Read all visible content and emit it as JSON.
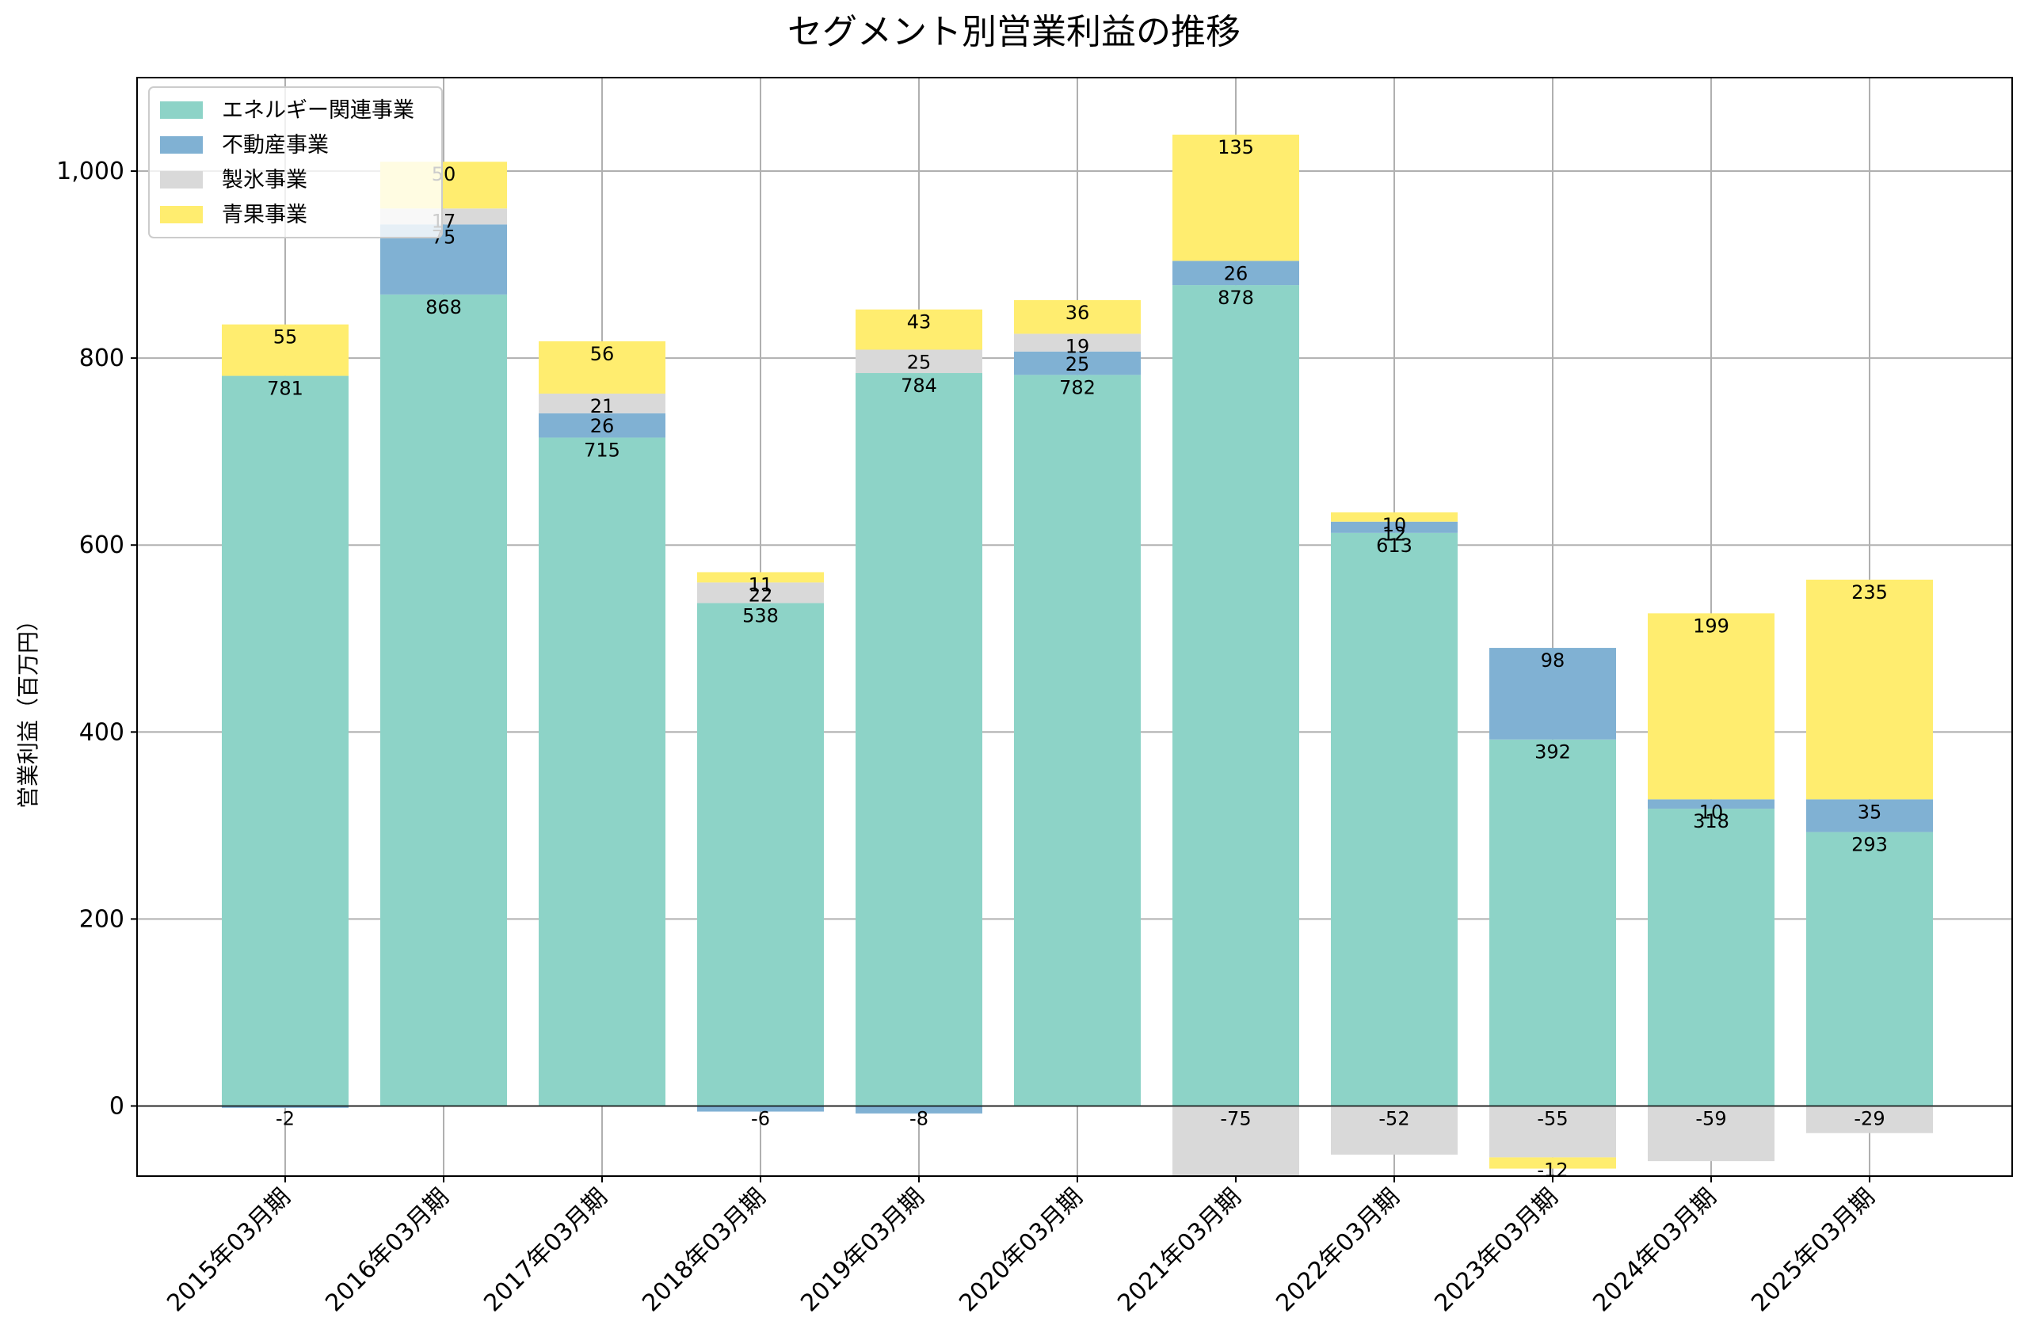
{
  "chart_data": {
    "type": "bar",
    "stacked": true,
    "title": "セグメント別営業利益の推移",
    "xlabel": "",
    "ylabel": "営業利益（百万円）",
    "ylim": [
      -75,
      1100
    ],
    "yticks": [
      0,
      200,
      400,
      600,
      800,
      1000
    ],
    "ytick_labels": [
      "0",
      "200",
      "400",
      "600",
      "800",
      "1,000"
    ],
    "grid": true,
    "legend_position": "top-left",
    "categories": [
      "2015年03月期",
      "2016年03月期",
      "2017年03月期",
      "2018年03月期",
      "2019年03月期",
      "2020年03月期",
      "2021年03月期",
      "2022年03月期",
      "2023年03月期",
      "2024年03月期",
      "2025年03月期"
    ],
    "series": [
      {
        "name": "エネルギー関連事業",
        "color": "#8dd3c7",
        "values": [
          781,
          868,
          715,
          538,
          784,
          782,
          878,
          613,
          392,
          318,
          293
        ]
      },
      {
        "name": "不動産事業",
        "color": "#80b1d3",
        "values": [
          -2,
          75,
          26,
          -6,
          -8,
          25,
          26,
          12,
          98,
          10,
          35
        ]
      },
      {
        "name": "製氷事業",
        "color": "#d9d9d9",
        "values": [
          0,
          17,
          21,
          22,
          25,
          19,
          -75,
          -52,
          -55,
          -59,
          -29
        ]
      },
      {
        "name": "青果事業",
        "color": "#ffed6f",
        "values": [
          55,
          50,
          56,
          11,
          43,
          36,
          135,
          10,
          -12,
          199,
          235
        ]
      }
    ]
  }
}
